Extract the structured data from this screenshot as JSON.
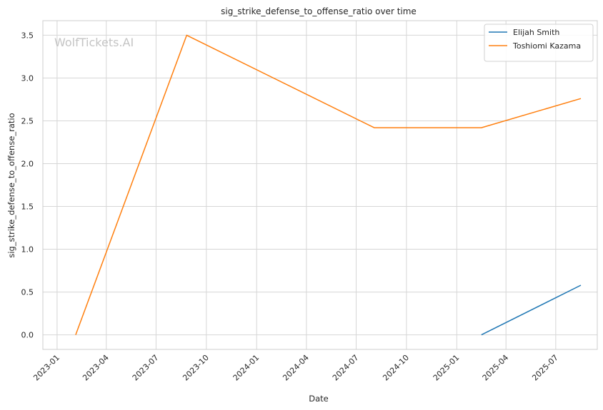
{
  "chart_data": {
    "type": "line",
    "title": "sig_strike_defense_to_offense_ratio over time",
    "xlabel": "Date",
    "ylabel": "sig_strike_defense_to_offense_ratio",
    "watermark": "WolfTickets.AI",
    "x_axis": {
      "type": "date",
      "range": [
        "2022-12-06",
        "2025-09-15"
      ],
      "ticks": [
        "2023-01",
        "2023-04",
        "2023-07",
        "2023-10",
        "2024-01",
        "2024-04",
        "2024-07",
        "2024-10",
        "2025-01",
        "2025-04",
        "2025-07"
      ]
    },
    "y_axis": {
      "range": [
        -0.17,
        3.67
      ],
      "ticks": [
        "0.0",
        "0.5",
        "1.0",
        "1.5",
        "2.0",
        "2.5",
        "3.0",
        "3.5"
      ]
    },
    "grid": true,
    "legend_position": "top-right",
    "series": [
      {
        "name": "Elijah Smith",
        "color": "#1f77b4",
        "points": [
          {
            "x": "2025-02-15",
            "y": 0.0
          },
          {
            "x": "2025-08-16",
            "y": 0.58
          }
        ]
      },
      {
        "name": "Toshiomi Kazama",
        "color": "#ff7f0e",
        "points": [
          {
            "x": "2023-02-04",
            "y": 0.0
          },
          {
            "x": "2023-08-26",
            "y": 3.5
          },
          {
            "x": "2024-08-03",
            "y": 2.42
          },
          {
            "x": "2025-02-15",
            "y": 2.42
          },
          {
            "x": "2025-08-16",
            "y": 2.76
          }
        ]
      }
    ]
  }
}
